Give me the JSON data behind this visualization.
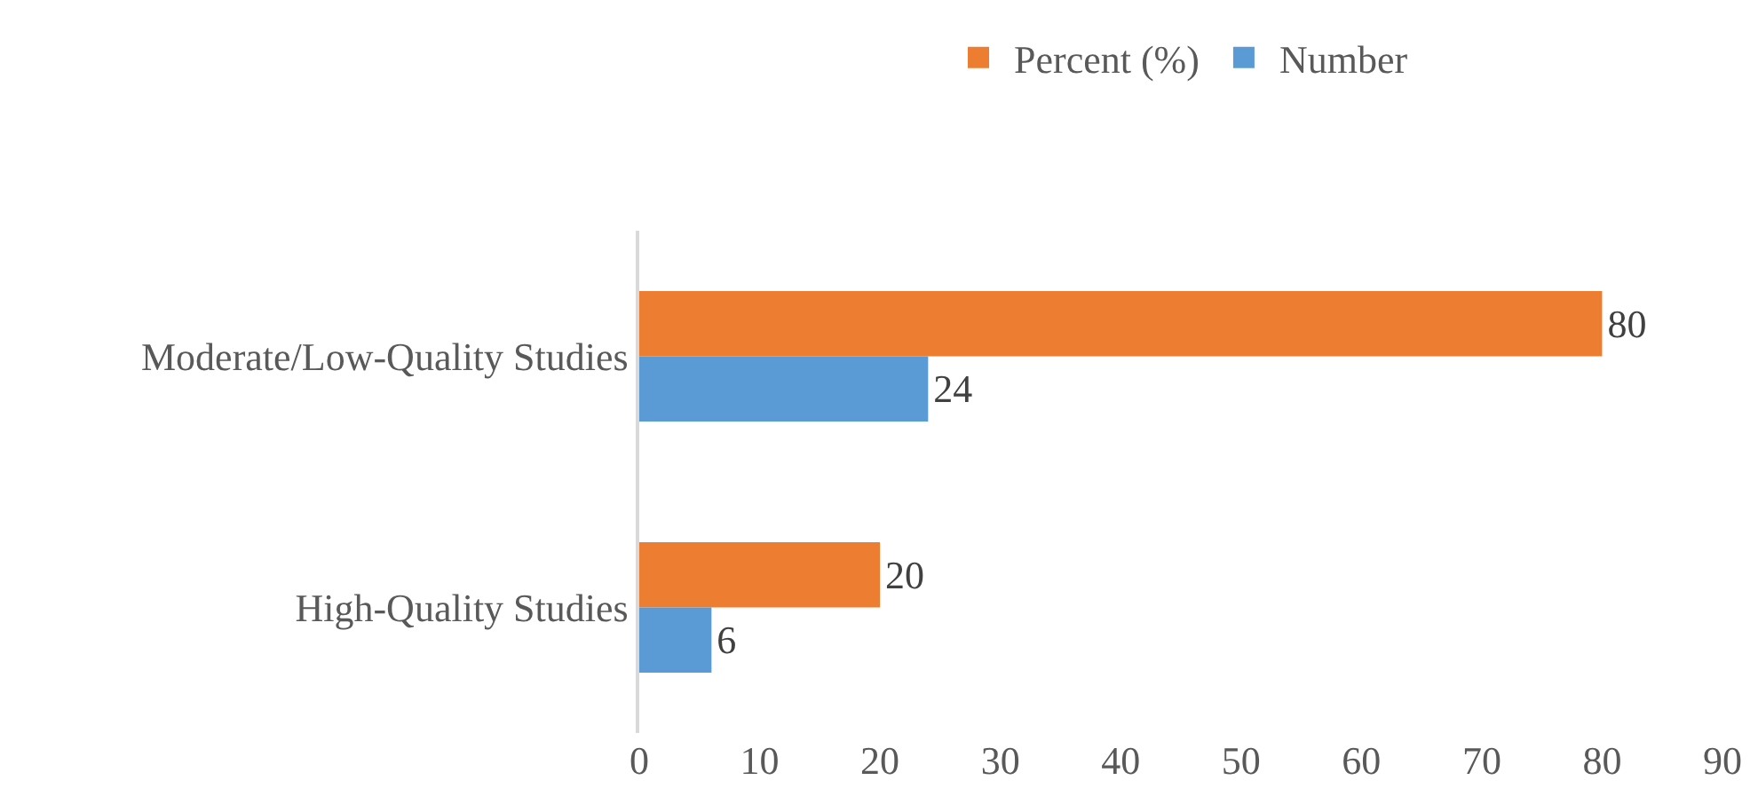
{
  "chart_data": {
    "type": "bar",
    "orientation": "horizontal",
    "categories": [
      "Moderate/Low-Quality Studies",
      "High-Quality Studies"
    ],
    "series": [
      {
        "name": "Percent (%)",
        "color": "#ed7d31",
        "values": [
          80,
          20
        ]
      },
      {
        "name": "Number",
        "color": "#5b9bd5",
        "values": [
          24,
          6
        ]
      }
    ],
    "xlim": [
      0,
      90
    ],
    "xticks": [
      0,
      10,
      20,
      30,
      40,
      50,
      60,
      70,
      80,
      90
    ],
    "data_labels": true,
    "legend": "top",
    "grid": false
  }
}
